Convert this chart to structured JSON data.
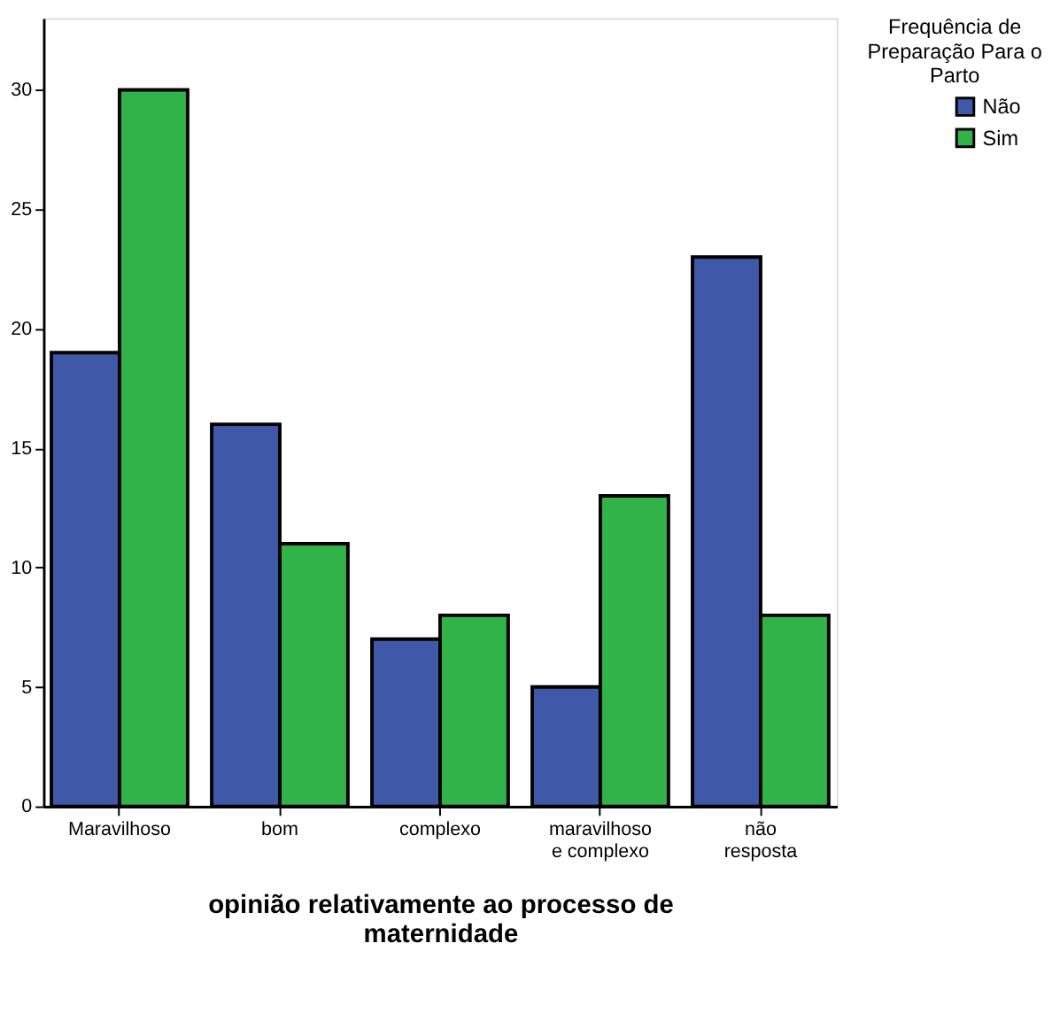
{
  "chart_data": {
    "type": "bar",
    "xlabel": "opinião relativamente ao processo de\nmaternidade",
    "legend_title": "Frequência de\nPreparação Para o\nParto",
    "categories": [
      "Maravilhoso",
      "bom",
      "complexo",
      "maravilhoso\ne complexo",
      "não\nresposta"
    ],
    "series": [
      {
        "name": "Não",
        "color": "#3f58a8",
        "values": [
          19,
          16,
          7,
          5,
          23
        ]
      },
      {
        "name": "Sim",
        "color": "#31b34a",
        "values": [
          30,
          11,
          8,
          13,
          8
        ]
      }
    ],
    "ylim": [
      0,
      33
    ],
    "yticks": [
      0,
      5,
      10,
      15,
      20,
      25,
      30
    ],
    "grid": false,
    "legend": "top right"
  }
}
